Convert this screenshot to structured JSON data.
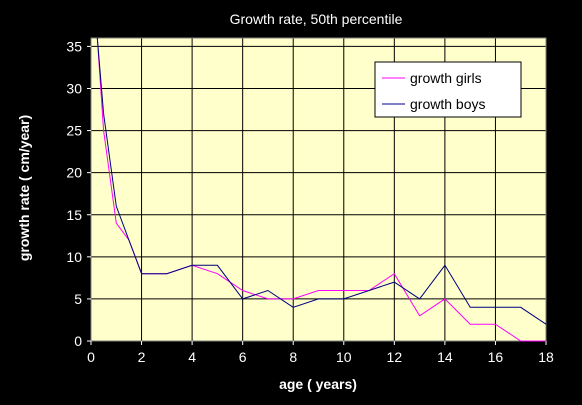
{
  "chart_data": {
    "type": "line",
    "title": "Growth rate, 50th percentile",
    "xlabel": "age ( years)",
    "ylabel": "growth rate  ( cm/year)",
    "xlim": [
      0,
      18
    ],
    "ylim": [
      0,
      36
    ],
    "x_ticks": [
      0,
      2,
      4,
      6,
      8,
      10,
      12,
      14,
      16,
      18
    ],
    "y_ticks": [
      0,
      5,
      10,
      15,
      20,
      25,
      30,
      35
    ],
    "grid": true,
    "legend_position": "top-right",
    "plot_background": "#ffffcc",
    "series": [
      {
        "name": "growth girls",
        "color": "#ff00ff",
        "x": [
          0.25,
          0.5,
          1,
          1.5,
          2,
          3,
          4,
          5,
          6,
          7,
          8,
          9,
          10,
          11,
          12,
          13,
          14,
          15,
          16,
          17,
          18
        ],
        "y": [
          36,
          25,
          14,
          12,
          8,
          8,
          9,
          8,
          6,
          5,
          5,
          6,
          6,
          6,
          8,
          3,
          5,
          2,
          2,
          0,
          0
        ]
      },
      {
        "name": "growth boys",
        "color": "#000080",
        "x": [
          0.25,
          0.5,
          1,
          1.5,
          2,
          3,
          4,
          5,
          6,
          7,
          8,
          9,
          10,
          11,
          12,
          13,
          14,
          15,
          16,
          17,
          18
        ],
        "y": [
          36,
          27,
          16,
          12,
          8,
          8,
          9,
          9,
          5,
          6,
          4,
          5,
          5,
          6,
          7,
          5,
          9,
          4,
          4,
          4,
          2
        ]
      }
    ]
  }
}
